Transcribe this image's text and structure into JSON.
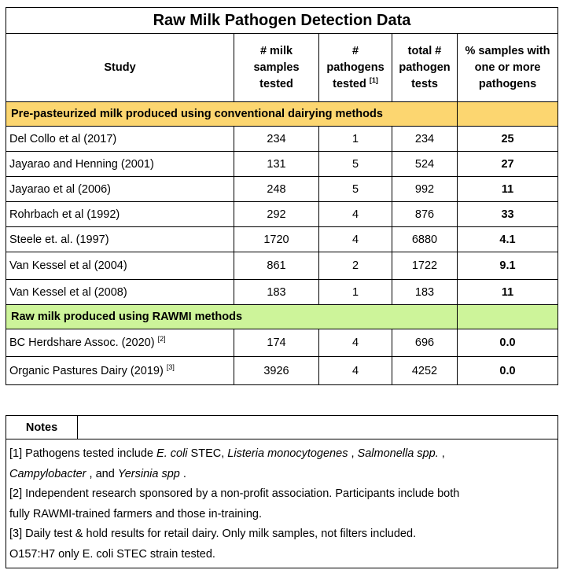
{
  "title": "Raw Milk Pathogen Detection Data",
  "headers": {
    "study": "Study",
    "samples": [
      "# milk",
      "samples",
      "tested"
    ],
    "pathogens": [
      "#",
      "pathogens",
      "tested"
    ],
    "pathogens_ref": "[1]",
    "total": [
      "total #",
      "pathogen",
      "tests"
    ],
    "pct": [
      "% samples with",
      "one or more",
      "pathogens"
    ]
  },
  "sections": [
    {
      "label": "Pre-pasteurized milk produced using conventional dairying methods",
      "color": "#fcd670",
      "rows": [
        {
          "study": "Del Collo et al (2017)",
          "ref": "",
          "samples": "234",
          "pathogens": "1",
          "total": "234",
          "pct": "25"
        },
        {
          "study": "Jayarao and Henning (2001)",
          "ref": "",
          "samples": "131",
          "pathogens": "5",
          "total": "524",
          "pct": "27"
        },
        {
          "study": "Jayarao et al (2006)",
          "ref": "",
          "samples": "248",
          "pathogens": "5",
          "total": "992",
          "pct": "11"
        },
        {
          "study": "Rohrbach et al (1992)",
          "ref": "",
          "samples": "292",
          "pathogens": "4",
          "total": "876",
          "pct": "33"
        },
        {
          "study": "Steele et. al. (1997)",
          "ref": "",
          "samples": "1720",
          "pathogens": "4",
          "total": "6880",
          "pct": "4.1"
        },
        {
          "study": "Van Kessel et al (2004)",
          "ref": "",
          "samples": "861",
          "pathogens": "2",
          "total": "1722",
          "pct": "9.1"
        },
        {
          "study": "Van Kessel et al (2008)",
          "ref": "",
          "samples": "183",
          "pathogens": "1",
          "total": "183",
          "pct": "11"
        }
      ]
    },
    {
      "label": "Raw milk produced using RAWMI methods",
      "color": "#cdf49a",
      "rows": [
        {
          "study": "BC Herdshare Assoc. (2020)",
          "ref": "[2]",
          "samples": "174",
          "pathogens": "4",
          "total": "696",
          "pct": "0.0"
        },
        {
          "study": "Organic Pastures Dairy (2019)",
          "ref": "[3]",
          "samples": "3926",
          "pathogens": "4",
          "total": "4252",
          "pct": "0.0"
        }
      ]
    }
  ],
  "notes": {
    "label": "Notes",
    "n1": {
      "a": "[1] Pathogens tested include ",
      "b": "E. coli",
      "c": " STEC, ",
      "d": "Listeria monocytogenes",
      "e": " , ",
      "f": "Salmonella spp.",
      "g": " ,",
      "h": "Campylobacter",
      "i": " , and ",
      "j": "Yersinia spp",
      "k": " ."
    },
    "n2a": "[2] Independent research sponsored by a non-profit association. Participants include both",
    "n2b": "fully RAWMI-trained farmers and those in-training.",
    "n3": "[3] Daily test & hold results for retail dairy. Only milk samples, not filters included.",
    "n4": "O157:H7 only E. coli STEC strain tested."
  }
}
